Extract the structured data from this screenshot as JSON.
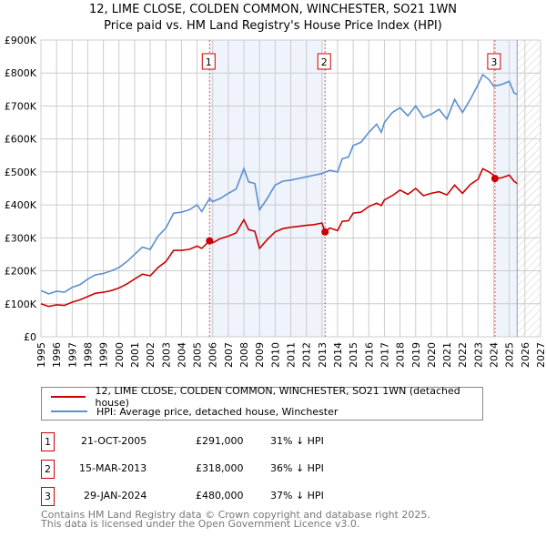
{
  "title_line1": "12, LIME CLOSE, COLDEN COMMON, WINCHESTER, SO21 1WN",
  "title_line2": "Price paid vs. HM Land Registry's House Price Index (HPI)",
  "chart_data": {
    "type": "line",
    "title": "12, LIME CLOSE, COLDEN COMMON, WINCHESTER, SO21 1WN — Price paid vs. HM Land Registry's House Price Index (HPI)",
    "xlim": [
      1995,
      2027
    ],
    "ylim": [
      0,
      900000
    ],
    "y_ticks": [
      "£0",
      "£100K",
      "£200K",
      "£300K",
      "£400K",
      "£500K",
      "£600K",
      "£700K",
      "£800K",
      "£900K"
    ],
    "x_ticks": [
      "1995",
      "1996",
      "1997",
      "1998",
      "1999",
      "2000",
      "2001",
      "2002",
      "2003",
      "2004",
      "2005",
      "2006",
      "2007",
      "2008",
      "2009",
      "2010",
      "2011",
      "2012",
      "2013",
      "2014",
      "2015",
      "2016",
      "2017",
      "2018",
      "2019",
      "2020",
      "2021",
      "2022",
      "2023",
      "2024",
      "2025",
      "2026",
      "2027"
    ],
    "grid": true,
    "colors": {
      "property": "#cc0000",
      "hpi": "#5b8fd0",
      "shade": "#eef3fc"
    },
    "series": [
      {
        "name": "12, LIME CLOSE, COLDEN COMMON, WINCHESTER, SO21 1WN (detached house)",
        "key": "property",
        "x": [
          1995,
          1995.5,
          1996,
          1996.5,
          1997,
          1997.5,
          1998,
          1998.5,
          1999,
          1999.5,
          2000,
          2000.5,
          2001,
          2001.5,
          2002,
          2002.5,
          2003,
          2003.5,
          2004,
          2004.5,
          2005,
          2005.3,
          2005.8,
          2006,
          2006.5,
          2007,
          2007.5,
          2008,
          2008.3,
          2008.7,
          2009,
          2009.5,
          2010,
          2010.5,
          2011,
          2011.5,
          2012,
          2012.5,
          2013,
          2013.2,
          2013.5,
          2014,
          2014.3,
          2014.7,
          2015,
          2015.5,
          2016,
          2016.5,
          2016.8,
          2017,
          2017.5,
          2018,
          2018.5,
          2019,
          2019.5,
          2020,
          2020.5,
          2021,
          2021.5,
          2022,
          2022.5,
          2023,
          2023.3,
          2023.7,
          2024,
          2024.1,
          2024.5,
          2025,
          2025.3,
          2025.5
        ],
        "values": [
          100,
          92,
          97,
          95,
          105,
          112,
          122,
          132,
          135,
          140,
          148,
          160,
          175,
          190,
          185,
          210,
          228,
          262,
          262,
          265,
          275,
          268,
          291,
          285,
          298,
          305,
          315,
          355,
          325,
          320,
          268,
          295,
          318,
          328,
          332,
          335,
          338,
          340,
          345,
          318,
          330,
          322,
          350,
          352,
          375,
          378,
          395,
          405,
          398,
          415,
          428,
          445,
          432,
          450,
          428,
          435,
          440,
          430,
          460,
          435,
          462,
          478,
          510,
          500,
          490,
          480,
          482,
          490,
          472,
          465
        ]
      },
      {
        "name": "HPI: Average price, detached house, Winchester",
        "key": "hpi",
        "x": [
          1995,
          1995.5,
          1996,
          1996.5,
          1997,
          1997.5,
          1998,
          1998.5,
          1999,
          1999.5,
          2000,
          2000.5,
          2001,
          2001.5,
          2002,
          2002.5,
          2003,
          2003.5,
          2004,
          2004.5,
          2005,
          2005.3,
          2005.8,
          2006,
          2006.5,
          2007,
          2007.5,
          2008,
          2008.3,
          2008.7,
          2009,
          2009.5,
          2010,
          2010.5,
          2011,
          2011.5,
          2012,
          2012.5,
          2013,
          2013.5,
          2014,
          2014.3,
          2014.7,
          2015,
          2015.5,
          2016,
          2016.5,
          2016.8,
          2017,
          2017.5,
          2018,
          2018.5,
          2019,
          2019.5,
          2020,
          2020.5,
          2021,
          2021.5,
          2022,
          2022.5,
          2023,
          2023.3,
          2023.7,
          2024,
          2024.5,
          2025,
          2025.3,
          2025.5
        ],
        "values": [
          140,
          130,
          138,
          135,
          150,
          158,
          175,
          188,
          192,
          200,
          210,
          228,
          250,
          272,
          265,
          305,
          330,
          375,
          378,
          385,
          400,
          380,
          420,
          410,
          420,
          435,
          448,
          510,
          470,
          465,
          385,
          420,
          460,
          472,
          475,
          480,
          485,
          490,
          495,
          505,
          500,
          540,
          545,
          580,
          590,
          620,
          645,
          620,
          650,
          680,
          695,
          670,
          700,
          665,
          675,
          690,
          660,
          720,
          680,
          720,
          765,
          795,
          780,
          760,
          765,
          775,
          740,
          735
        ]
      }
    ],
    "value_unit": "£K",
    "transactions": [
      {
        "label": "1",
        "x": 2005.8,
        "value": 291
      },
      {
        "label": "2",
        "x": 2013.2,
        "value": 318
      },
      {
        "label": "3",
        "x": 2024.08,
        "value": 480
      }
    ],
    "shaded_ranges": [
      [
        2005.8,
        2013.2
      ],
      [
        2024.08,
        2025.5
      ]
    ],
    "forecast_hatch_from": 2025.5,
    "legend_position": "bottom"
  },
  "legend": [
    "12, LIME CLOSE, COLDEN COMMON, WINCHESTER, SO21 1WN (detached house)",
    "HPI: Average price, detached house, Winchester"
  ],
  "table": [
    {
      "num": "1",
      "date": "21-OCT-2005",
      "price": "£291,000",
      "hpi": "31% ↓ HPI"
    },
    {
      "num": "2",
      "date": "15-MAR-2013",
      "price": "£318,000",
      "hpi": "36% ↓ HPI"
    },
    {
      "num": "3",
      "date": "29-JAN-2024",
      "price": "£480,000",
      "hpi": "37% ↓ HPI"
    }
  ],
  "footer": [
    "Contains HM Land Registry data © Crown copyright and database right 2025.",
    "This data is licensed under the Open Government Licence v3.0."
  ]
}
